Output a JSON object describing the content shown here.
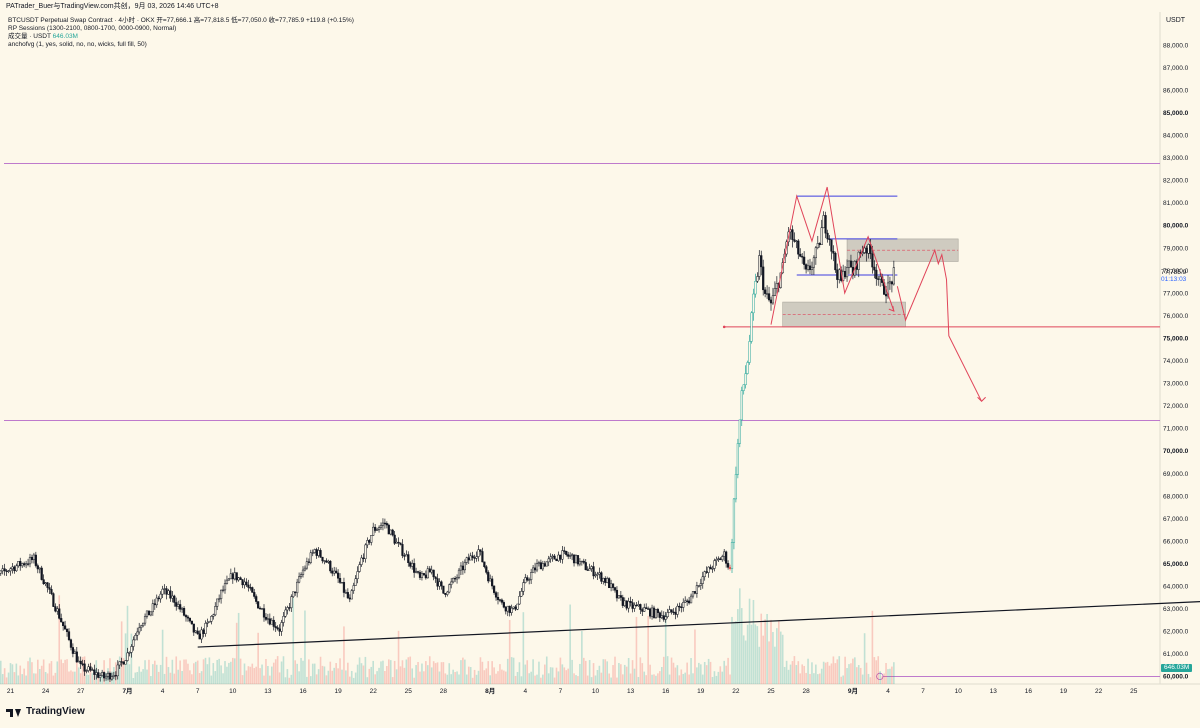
{
  "header": {
    "author_line": "PATrader_Buer与TradingView.com共创，9月 03, 2026 14:46 UTC+8"
  },
  "legend": {
    "symbol_line": "BTCUSDT Perpetual Swap Contract · 4小时 · OKX  开=77,666.1  高=77,818.5  低=77,050.0  收=77,785.9  +119.8 (+0.15%)",
    "sessions_line": "RP Sessions (1300-2100, 0800-1700, 0000-0900, Normal)",
    "volume_label": "成交量 · USDT",
    "volume_value": "646.03M",
    "fvg_line": "anchofvg (1, yes, solid, no, no, wicks, full fill, 50)"
  },
  "currency": "USDT",
  "brand": "TradingView",
  "last_price": {
    "price": "77,785.9",
    "countdown": "01:13:03"
  },
  "volume_tag": "646.03M",
  "colors": {
    "background": "#fdf8ea",
    "up": "#26a69a",
    "down": "#ef5350",
    "candle_body": "#131722",
    "purple_line": "#b468c8",
    "blue_line": "#3d3de0",
    "red_drawing": "#e04459",
    "zone_fill": "#bdbab0"
  },
  "chart_data": {
    "type": "candlestick",
    "ylim": [
      60000,
      88500
    ],
    "y_ticks": [
      60000,
      61000,
      62000,
      63000,
      64000,
      65000,
      66000,
      67000,
      68000,
      69000,
      70000,
      71000,
      72000,
      73000,
      74000,
      75000,
      76000,
      77000,
      78000,
      79000,
      80000,
      81000,
      82000,
      83000,
      84000,
      85000,
      86000,
      87000,
      88000
    ],
    "y_tick_labels": [
      "60,000.0",
      "61,000.0",
      "62,000.0",
      "63,000.0",
      "64,000.0",
      "65,000.0",
      "66,000.0",
      "67,000.0",
      "68,000.0",
      "69,000.0",
      "70,000.0",
      "71,000.0",
      "72,000.0",
      "73,000.0",
      "74,000.0",
      "75,000.0",
      "76,000.0",
      "77,000.0",
      "78,000.0",
      "79,000.0",
      "80,000.0",
      "81,000.0",
      "82,000.0",
      "83,000.0",
      "84,000.0",
      "85,000.0",
      "86,000.0",
      "87,000.0",
      "88,000.0"
    ],
    "bold_ticks": [
      "60,000.0",
      "65,000.0",
      "70,000.0",
      "75,000.0",
      "80,000.0",
      "85,000.0"
    ],
    "x_tick_labels": [
      "21",
      "24",
      "27",
      "7月",
      "4",
      "7",
      "10",
      "13",
      "16",
      "19",
      "22",
      "25",
      "28",
      "8月",
      "4",
      "7",
      "10",
      "13",
      "16",
      "19",
      "22",
      "25",
      "28",
      "9月",
      "4",
      "7",
      "10",
      "13",
      "16",
      "19",
      "22",
      "25"
    ],
    "x_tick_days": [
      -10,
      -7,
      -4,
      0,
      3,
      6,
      9,
      12,
      15,
      18,
      21,
      24,
      27,
      31,
      34,
      37,
      40,
      43,
      46,
      49,
      52,
      55,
      58,
      62,
      65,
      68,
      71,
      74,
      77,
      80,
      83,
      86
    ],
    "close_path": [
      [
        -12,
        64200
      ],
      [
        -10,
        64800
      ],
      [
        -8,
        65200
      ],
      [
        -7,
        64100
      ],
      [
        -6,
        62900
      ],
      [
        -5,
        61600
      ],
      [
        -4,
        60400
      ],
      [
        -3,
        60200
      ],
      [
        -2,
        59950
      ],
      [
        -1,
        60200
      ],
      [
        0,
        61000
      ],
      [
        1,
        62300
      ],
      [
        2,
        62900
      ],
      [
        3,
        63800
      ],
      [
        4,
        63400
      ],
      [
        5,
        62600
      ],
      [
        6,
        61700
      ],
      [
        7,
        62400
      ],
      [
        8,
        63700
      ],
      [
        9,
        64500
      ],
      [
        10,
        64200
      ],
      [
        11,
        63300
      ],
      [
        12,
        62600
      ],
      [
        13,
        62100
      ],
      [
        14,
        63400
      ],
      [
        15,
        64700
      ],
      [
        16,
        65600
      ],
      [
        17,
        65100
      ],
      [
        18,
        64300
      ],
      [
        19,
        63300
      ],
      [
        20,
        65200
      ],
      [
        21,
        66500
      ],
      [
        22,
        66800
      ],
      [
        23,
        65900
      ],
      [
        24,
        65200
      ],
      [
        25,
        64300
      ],
      [
        26,
        64700
      ],
      [
        27,
        63700
      ],
      [
        28,
        64300
      ],
      [
        29,
        65100
      ],
      [
        30,
        65600
      ],
      [
        31,
        64200
      ],
      [
        32,
        63200
      ],
      [
        33,
        62900
      ],
      [
        34,
        64200
      ],
      [
        35,
        64900
      ],
      [
        36,
        65100
      ],
      [
        37,
        65400
      ],
      [
        38,
        65300
      ],
      [
        39,
        64900
      ],
      [
        40,
        64600
      ],
      [
        41,
        64200
      ],
      [
        42,
        63400
      ],
      [
        43,
        63100
      ],
      [
        44,
        63000
      ],
      [
        45,
        62800
      ],
      [
        46,
        62700
      ],
      [
        47,
        63000
      ],
      [
        48,
        63400
      ],
      [
        49,
        64300
      ],
      [
        50,
        64900
      ],
      [
        51,
        65400
      ],
      [
        51.5,
        64700
      ],
      [
        52,
        69200
      ],
      [
        52.5,
        72400
      ],
      [
        53,
        74000
      ],
      [
        53.5,
        76700
      ],
      [
        54,
        78500
      ],
      [
        54.5,
        76900
      ],
      [
        55,
        76500
      ],
      [
        55.5,
        77300
      ],
      [
        56,
        78100
      ],
      [
        56.5,
        79800
      ],
      [
        57,
        79200
      ],
      [
        57.5,
        78600
      ],
      [
        58,
        77800
      ],
      [
        58.5,
        78300
      ],
      [
        59,
        78900
      ],
      [
        59.5,
        80200
      ],
      [
        60,
        79500
      ],
      [
        60.5,
        78100
      ],
      [
        61,
        77500
      ],
      [
        61.5,
        78300
      ],
      [
        62,
        77900
      ],
      [
        62.5,
        78600
      ],
      [
        63,
        79100
      ],
      [
        63.5,
        78700
      ],
      [
        64,
        77900
      ],
      [
        64.5,
        77200
      ],
      [
        65,
        77200
      ],
      [
        65.5,
        77800
      ]
    ],
    "volume": {
      "label": "成交量",
      "value": "646.03M"
    },
    "levels": {
      "purple_upper": 82750,
      "purple_lower": 71350,
      "red_support": 75500,
      "baseline": 60000,
      "blue_high": 81300,
      "blue_mid": 79400,
      "blue_low": 77800
    },
    "zones": [
      {
        "name": "upper-fvg",
        "x_from": 61.5,
        "x_to": 71.0,
        "y_low": 78400,
        "y_high": 79400,
        "mid": 78900
      },
      {
        "name": "lower-fvg",
        "x_from": 56.0,
        "x_to": 66.5,
        "y_low": 75500,
        "y_high": 76600,
        "mid": 76050
      }
    ],
    "pattern_line": [
      [
        55.0,
        75600
      ],
      [
        57.2,
        81300
      ],
      [
        58.5,
        79300
      ],
      [
        59.8,
        81700
      ],
      [
        61.3,
        77000
      ],
      [
        63.3,
        79500
      ],
      [
        65.5,
        76200
      ]
    ],
    "projection": [
      [
        65.8,
        77300
      ],
      [
        66.5,
        75800
      ],
      [
        69.0,
        78900
      ],
      [
        69.3,
        78300
      ],
      [
        69.6,
        78700
      ],
      [
        70.0,
        77600
      ],
      [
        70.2,
        75100
      ],
      [
        73.0,
        72200
      ]
    ],
    "trendline": [
      [
        6,
        61300
      ],
      [
        108,
        63700
      ]
    ],
    "series": [
      {
        "name": "BTCUSDT",
        "values": []
      }
    ]
  }
}
